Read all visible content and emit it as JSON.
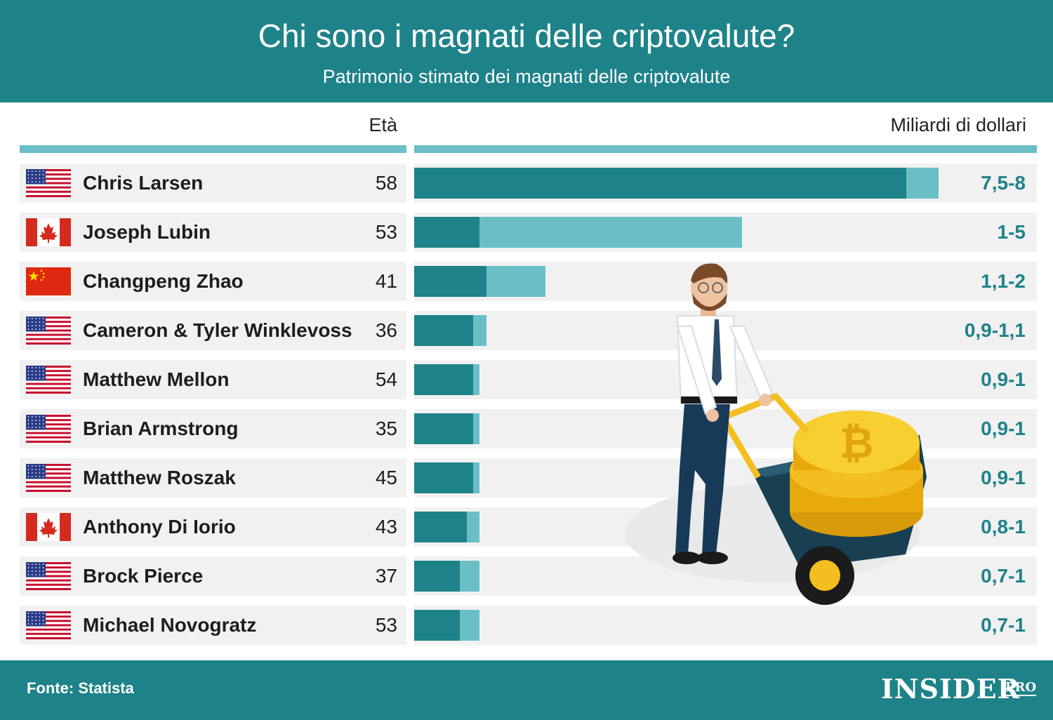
{
  "header": {
    "title": "Chi sono i magnati delle criptovalute?",
    "subtitle": "Patrimonio stimato dei magnati delle criptovalute"
  },
  "columns": {
    "age_label": "Età",
    "value_label": "Miliardi di dollari"
  },
  "colors": {
    "teal": "#1e8289",
    "light_teal": "#6abfc7",
    "row_bg": "#f1f1f1"
  },
  "chart_data": {
    "type": "bar",
    "orientation": "horizontal",
    "range_unit": "Miliardi di dollari",
    "xlim": [
      0,
      8
    ],
    "rows": [
      {
        "name": "Chris Larsen",
        "country": "USA",
        "age": "58",
        "range_label": "7,5-8",
        "low": 7.5,
        "high": 8
      },
      {
        "name": "Joseph Lubin",
        "country": "Canada",
        "age": "53",
        "range_label": "1-5",
        "low": 1,
        "high": 5
      },
      {
        "name": "Changpeng Zhao",
        "country": "China",
        "age": "41",
        "range_label": "1,1-2",
        "low": 1.1,
        "high": 2
      },
      {
        "name": "Cameron & Tyler Winklevoss",
        "country": "USA",
        "age": "36",
        "range_label": "0,9-1,1",
        "low": 0.9,
        "high": 1.1
      },
      {
        "name": "Matthew Mellon",
        "country": "USA",
        "age": "54",
        "range_label": "0,9-1",
        "low": 0.9,
        "high": 1
      },
      {
        "name": "Brian Armstrong",
        "country": "USA",
        "age": "35",
        "range_label": "0,9-1",
        "low": 0.9,
        "high": 1
      },
      {
        "name": "Matthew Roszak",
        "country": "USA",
        "age": "45",
        "range_label": "0,9-1",
        "low": 0.9,
        "high": 1
      },
      {
        "name": "Anthony Di Iorio",
        "country": "Canada",
        "age": "43",
        "range_label": "0,8-1",
        "low": 0.8,
        "high": 1
      },
      {
        "name": "Brock Pierce",
        "country": "USA",
        "age": "37",
        "range_label": "0,7-1",
        "low": 0.7,
        "high": 1
      },
      {
        "name": "Michael Novogratz",
        "country": "USA",
        "age": "53",
        "range_label": "0,7-1",
        "low": 0.7,
        "high": 1
      }
    ]
  },
  "illustration": {
    "icon": "businessman-pushing-bitcoin-wheelbarrow-icon"
  },
  "footer": {
    "source": "Fonte: Statista",
    "logo_main": "INSIDER",
    "logo_pro": "PRO"
  }
}
